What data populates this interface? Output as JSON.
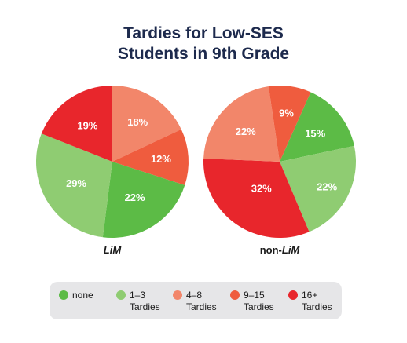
{
  "title_lines": [
    "Tardies for Low-SES",
    "Students in 9th Grade"
  ],
  "chart_data": {
    "type": "pie",
    "title": "Tardies for Low-SES Students in 9th Grade",
    "categories": [
      "none",
      "1–3 Tardies",
      "4–8 Tardies",
      "9–15 Tardies",
      "16+ Tardies"
    ],
    "colors": [
      "#5cbb46",
      "#8fcc72",
      "#f2866a",
      "#ef5c3e",
      "#e8262c"
    ],
    "pies": [
      {
        "name": "LiM",
        "slices": [
          {
            "category": "4–8 Tardies",
            "value": 18,
            "label": "18%"
          },
          {
            "category": "9–15 Tardies",
            "value": 12,
            "label": "12%"
          },
          {
            "category": "none",
            "value": 22,
            "label": "22%"
          },
          {
            "category": "1–3 Tardies",
            "value": 29,
            "label": "29%"
          },
          {
            "category": "16+ Tardies",
            "value": 19,
            "label": "19%"
          }
        ]
      },
      {
        "name": "non-LiM",
        "slices": [
          {
            "category": "none",
            "value": 15,
            "label": "15%"
          },
          {
            "category": "1–3 Tardies",
            "value": 22,
            "label": "22%"
          },
          {
            "category": "16+ Tardies",
            "value": 32,
            "label": "32%"
          },
          {
            "category": "4–8 Tardies",
            "value": 22,
            "label": "22%"
          },
          {
            "category": "9–15 Tardies",
            "value": 9,
            "label": "9%"
          }
        ]
      }
    ],
    "legend": {
      "placement": "bottom",
      "items": [
        {
          "text": "none",
          "color": "#5cbb46"
        },
        {
          "text": "1–3 Tardies",
          "color": "#8fcc72"
        },
        {
          "text": "4–8 Tardies",
          "color": "#f2866a"
        },
        {
          "text": "9–15 Tardies",
          "color": "#ef5c3e"
        },
        {
          "text": "16+ Tardies",
          "color": "#e8262c"
        }
      ]
    }
  }
}
